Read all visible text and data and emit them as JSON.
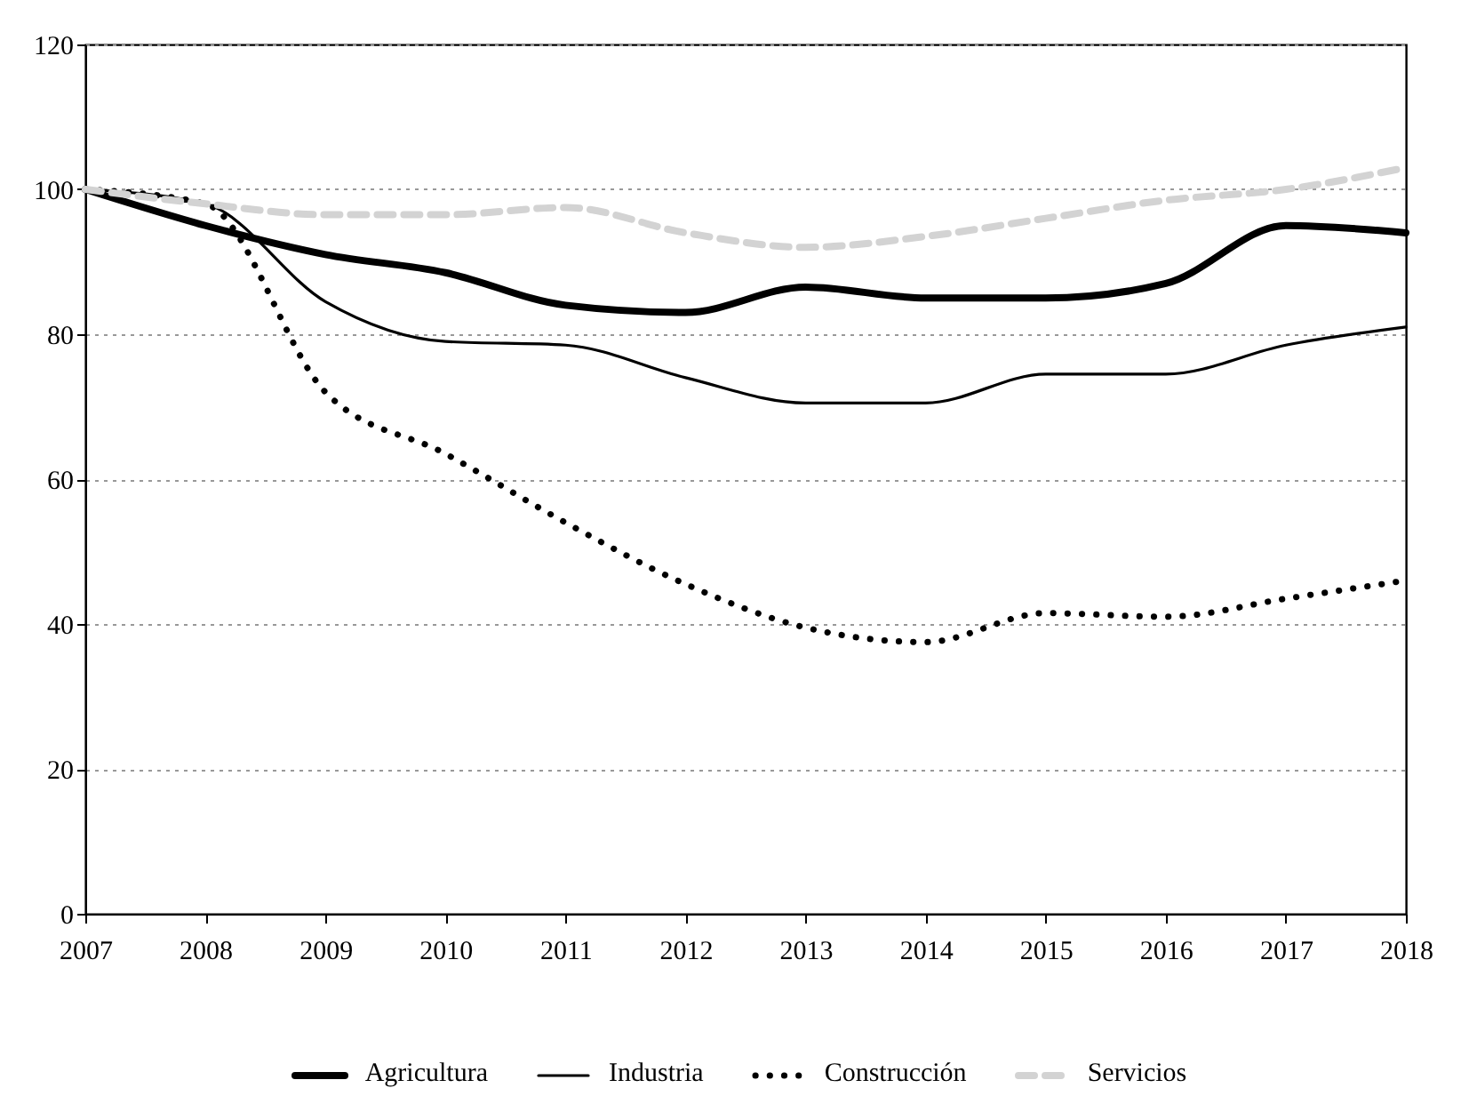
{
  "chart_data": {
    "type": "line",
    "categories": [
      "2007",
      "2008",
      "2009",
      "2010",
      "2011",
      "2012",
      "2013",
      "2014",
      "2015",
      "2016",
      "2017",
      "2018"
    ],
    "ylim": [
      0,
      120
    ],
    "yticks": [
      0,
      20,
      40,
      60,
      80,
      100,
      120
    ],
    "grid": "y",
    "legend": "bottom",
    "series": [
      {
        "name": "Agricultura",
        "color": "#000000",
        "line_style": "solid",
        "values": [
          100,
          95,
          91,
          88.5,
          84,
          83,
          86.5,
          85,
          85,
          87,
          95,
          94
        ]
      },
      {
        "name": "Industria",
        "color": "#000000",
        "line_style": "solid",
        "values": [
          100,
          98,
          84.5,
          79,
          78.5,
          74,
          70.5,
          70.5,
          74.5,
          74.5,
          78.5,
          81
        ]
      },
      {
        "name": "Construcción",
        "color": "#000000",
        "line_style": "dotted",
        "values": [
          100,
          98,
          72,
          63.5,
          54,
          45.5,
          39.5,
          37.5,
          41.5,
          41,
          43.5,
          46
        ]
      },
      {
        "name": "Servicios",
        "color": "#d3d3d3",
        "line_style": "dashed",
        "values": [
          100,
          98,
          96.5,
          96.5,
          97.5,
          94,
          92,
          93.5,
          96,
          98.5,
          100,
          103
        ]
      }
    ]
  }
}
